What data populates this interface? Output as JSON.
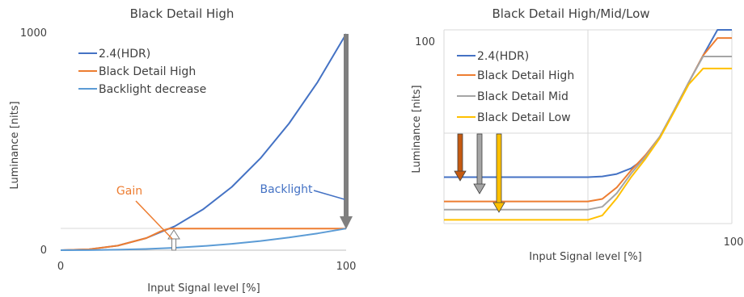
{
  "colors": {
    "hdr": "#4472c4",
    "high": "#ed7d31",
    "backlight": "#5b9bd5",
    "mid": "#a5a5a5",
    "low": "#ffc000",
    "arrow_gray": "#7f7f7f",
    "gridline": "#d9d9d9",
    "text": "#404040"
  },
  "chart_data": [
    {
      "type": "line",
      "title": "Black Detail High",
      "xlabel": "Input Signal level [%]",
      "ylabel": "Luminance [nits]",
      "xlim": [
        0,
        100
      ],
      "ylim": [
        0,
        1000
      ],
      "x_ticks": [
        "0",
        "100"
      ],
      "y_ticks": [
        "0",
        "1000"
      ],
      "legend_position": "top-left",
      "series": [
        {
          "name": "2.4(HDR)",
          "color_key": "hdr",
          "x": [
            0,
            10,
            20,
            30,
            40,
            50,
            60,
            70,
            80,
            90,
            100
          ],
          "values": [
            0,
            4,
            21,
            56,
            111,
            190,
            293,
            425,
            586,
            777,
            1000
          ]
        },
        {
          "name": "Black Detail High",
          "color_key": "high",
          "x": [
            0,
            10,
            20,
            30,
            35,
            38,
            40,
            50,
            60,
            70,
            80,
            90,
            100
          ],
          "values": [
            0,
            4,
            21,
            56,
            87,
            100,
            100,
            100,
            100,
            100,
            100,
            100,
            100
          ]
        },
        {
          "name": "Backlight decrease",
          "color_key": "backlight",
          "x": [
            0,
            10,
            20,
            30,
            40,
            50,
            60,
            70,
            80,
            90,
            100
          ],
          "values": [
            0,
            0.4,
            2.1,
            5.6,
            11.1,
            19,
            29.3,
            42.5,
            58.6,
            77.7,
            100
          ]
        }
      ],
      "annotations": [
        "Gain",
        "Backlight"
      ]
    },
    {
      "type": "line",
      "title": "Black Detail High/Mid/Low",
      "xlabel": "Input Signal level [%]",
      "ylabel": "Luminance [nits]",
      "yscale": "log",
      "xlim": [
        0,
        100
      ],
      "ylim": [
        0.01,
        150
      ],
      "x_ticks": [
        "100"
      ],
      "y_ticks": [
        "100"
      ],
      "legend_position": "top-left",
      "series": [
        {
          "name": "2.4(HDR)",
          "color_key": "hdr",
          "x": [
            0,
            20,
            40,
            50,
            55,
            60,
            65,
            70,
            75,
            80,
            85,
            90,
            95,
            100
          ],
          "values": [
            0.1,
            0.1,
            0.1,
            0.1,
            0.104,
            0.117,
            0.155,
            0.26,
            0.75,
            2.8,
            11,
            42,
            150,
            150
          ]
        },
        {
          "name": "Black Detail High",
          "color_key": "high",
          "x": [
            0,
            20,
            40,
            50,
            55,
            60,
            65,
            70,
            75,
            80,
            85,
            90,
            95,
            100
          ],
          "values": [
            0.03,
            0.03,
            0.03,
            0.03,
            0.034,
            0.06,
            0.14,
            0.3,
            0.75,
            2.8,
            11,
            42,
            100,
            100
          ]
        },
        {
          "name": "Black Detail Mid",
          "color_key": "mid",
          "x": [
            0,
            20,
            40,
            50,
            55,
            60,
            65,
            70,
            75,
            80,
            85,
            90,
            95,
            100
          ],
          "values": [
            0.02,
            0.02,
            0.02,
            0.02,
            0.023,
            0.045,
            0.12,
            0.28,
            0.75,
            2.8,
            11,
            40,
            40,
            40
          ]
        },
        {
          "name": "Black Detail Low",
          "color_key": "low",
          "x": [
            0,
            20,
            40,
            50,
            55,
            60,
            65,
            70,
            75,
            80,
            85,
            90,
            95,
            100
          ],
          "values": [
            0.012,
            0.012,
            0.012,
            0.012,
            0.015,
            0.035,
            0.1,
            0.25,
            0.7,
            2.6,
            10,
            22,
            22,
            22
          ]
        }
      ]
    }
  ]
}
